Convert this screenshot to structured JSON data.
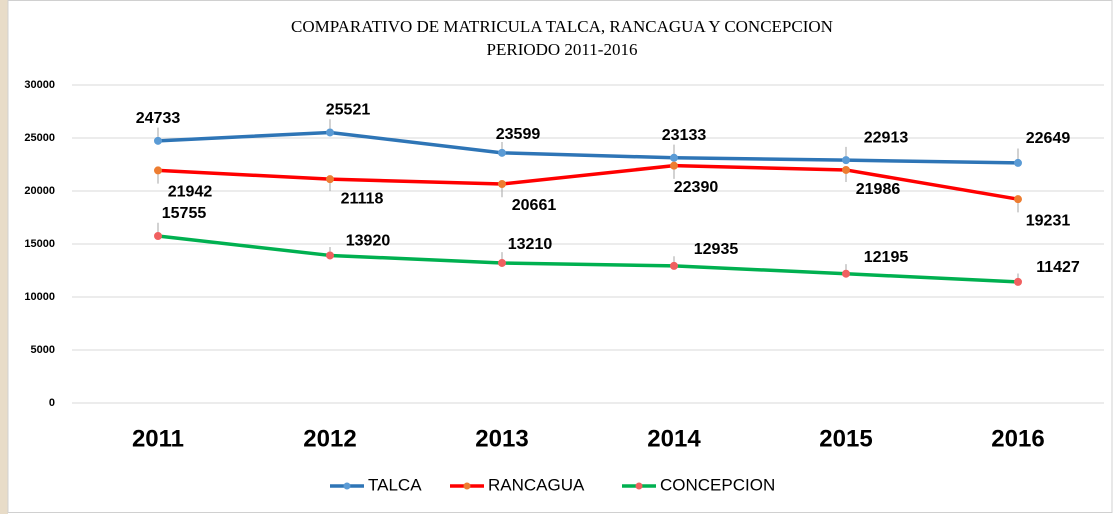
{
  "chart_data": {
    "type": "line",
    "title": "COMPARATIVO DE MATRICULA TALCA, RANCAGUA Y CONCEPCION",
    "subtitle": "PERIODO 2011-2016",
    "categories": [
      "2011",
      "2012",
      "2013",
      "2014",
      "2015",
      "2016"
    ],
    "series": [
      {
        "name": "TALCA",
        "color": "#2e75b6",
        "marker_color": "#5b9bd5",
        "values": [
          24733,
          25521,
          23599,
          23133,
          22913,
          22649
        ]
      },
      {
        "name": "RANCAGUA",
        "color": "#ff0000",
        "marker_color": "#ed7d31",
        "values": [
          21942,
          21118,
          20661,
          22390,
          21986,
          19231
        ]
      },
      {
        "name": "CONCEPCION",
        "color": "#00b050",
        "marker_color": "#f06060",
        "values": [
          15755,
          13920,
          13210,
          12935,
          12195,
          11427
        ]
      }
    ],
    "ylim": [
      0,
      30000
    ],
    "yticks": [
      0,
      5000,
      10000,
      15000,
      20000,
      25000,
      30000
    ],
    "grid": true,
    "legend": "bottom"
  }
}
